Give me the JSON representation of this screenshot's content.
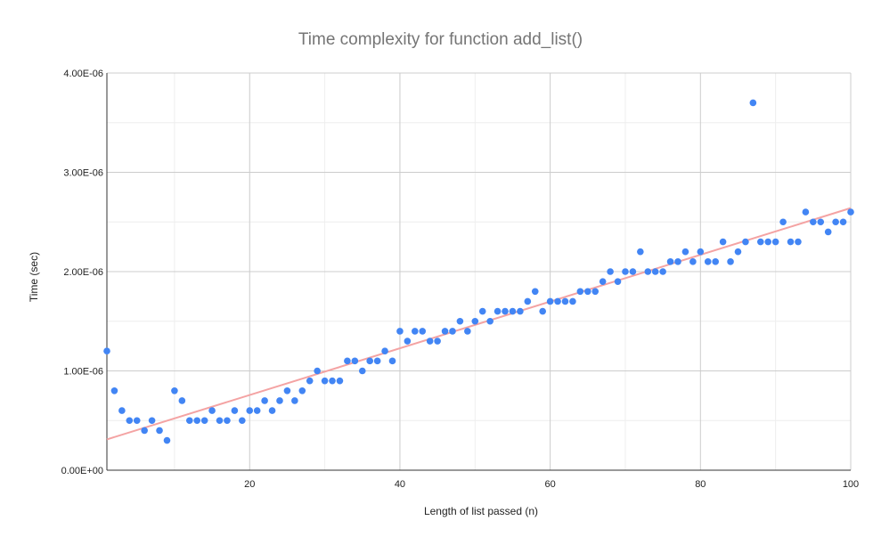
{
  "chart_data": {
    "type": "scatter",
    "title": "Time complexity for function add_list()",
    "xlabel": "Length of list passed (n)",
    "ylabel": "Time (sec)",
    "xlim": [
      1,
      100
    ],
    "ylim": [
      0,
      4e-06
    ],
    "x_ticks": [
      20,
      40,
      60,
      80,
      100
    ],
    "x_tick_labels": [
      "20",
      "40",
      "60",
      "80",
      "100"
    ],
    "y_ticks": [
      0,
      1e-06,
      2e-06,
      3e-06,
      4e-06
    ],
    "y_tick_labels": [
      "0.00E+00",
      "1.00E-06",
      "2.00E-06",
      "3.00E-06",
      "4.00E-06"
    ],
    "grid": true,
    "legend": "none",
    "colors": {
      "points": "#4285f4",
      "trendline": "#f4a3a3",
      "major_grid": "#cccccc",
      "minor_grid": "#eeeeee"
    },
    "trendline": {
      "type": "linear",
      "x": [
        1,
        100
      ],
      "y": [
        3.1e-07,
        2.64e-06
      ]
    },
    "series": [
      {
        "x": [
          1,
          2,
          3,
          4,
          5,
          6,
          7,
          8,
          9,
          10,
          11,
          12,
          13,
          14,
          15,
          16,
          17,
          18,
          19,
          20,
          21,
          22,
          23,
          24,
          25,
          26,
          27,
          28,
          29,
          30,
          31,
          32,
          33,
          34,
          35,
          36,
          37,
          38,
          39,
          40,
          41,
          42,
          43,
          44,
          45,
          46,
          47,
          48,
          49,
          50,
          51,
          52,
          53,
          54,
          55,
          56,
          57,
          58,
          59,
          60,
          61,
          62,
          63,
          64,
          65,
          66,
          67,
          68,
          69,
          70,
          71,
          72,
          73,
          74,
          75,
          76,
          77,
          78,
          79,
          80,
          81,
          82,
          83,
          84,
          85,
          86,
          87,
          88,
          89,
          90,
          91,
          92,
          93,
          94,
          95,
          96,
          97,
          98,
          99,
          100
        ],
        "values": [
          1.2e-06,
          8e-07,
          6e-07,
          5e-07,
          5e-07,
          4e-07,
          5e-07,
          4e-07,
          3e-07,
          8e-07,
          7e-07,
          5e-07,
          5e-07,
          5e-07,
          6e-07,
          5e-07,
          5e-07,
          6e-07,
          5e-07,
          6e-07,
          6e-07,
          7e-07,
          6e-07,
          7e-07,
          8e-07,
          7e-07,
          8e-07,
          9e-07,
          1e-06,
          9e-07,
          9e-07,
          9e-07,
          1.1e-06,
          1.1e-06,
          1e-06,
          1.1e-06,
          1.1e-06,
          1.2e-06,
          1.1e-06,
          1.4e-06,
          1.3e-06,
          1.4e-06,
          1.4e-06,
          1.3e-06,
          1.3e-06,
          1.4e-06,
          1.4e-06,
          1.5e-06,
          1.4e-06,
          1.5e-06,
          1.6e-06,
          1.5e-06,
          1.6e-06,
          1.6e-06,
          1.6e-06,
          1.6e-06,
          1.7e-06,
          1.8e-06,
          1.6e-06,
          1.7e-06,
          1.7e-06,
          1.7e-06,
          1.7e-06,
          1.8e-06,
          1.8e-06,
          1.8e-06,
          1.9e-06,
          2e-06,
          1.9e-06,
          2e-06,
          2e-06,
          2.2e-06,
          2e-06,
          2e-06,
          2e-06,
          2.1e-06,
          2.1e-06,
          2.2e-06,
          2.1e-06,
          2.2e-06,
          2.1e-06,
          2.1e-06,
          2.3e-06,
          2.1e-06,
          2.2e-06,
          2.3e-06,
          3.7e-06,
          2.3e-06,
          2.3e-06,
          2.3e-06,
          2.5e-06,
          2.3e-06,
          2.3e-06,
          2.6e-06,
          2.5e-06,
          2.5e-06,
          2.4e-06,
          2.5e-06,
          2.5e-06,
          2.6e-06
        ]
      }
    ]
  }
}
